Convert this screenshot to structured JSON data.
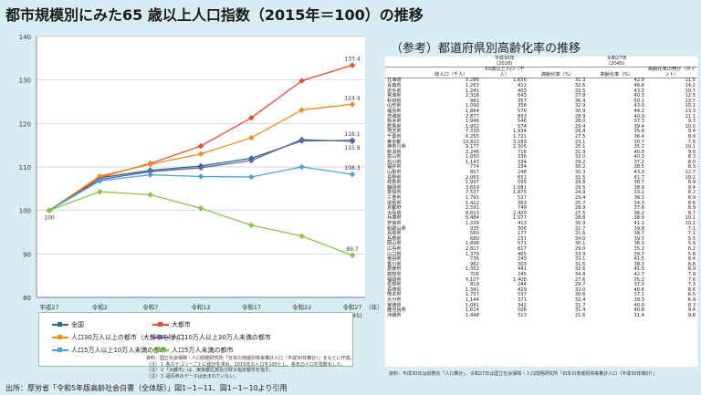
{
  "title": "都市規模別にみた65 歳以上人口指数（2015年＝100）の推移",
  "source": "出所：厚労省「令和5年版高齢社会白書（全体版）」図1−1−11、図1−1−10より引用",
  "notes": [
    "資料：国立社会保障・人口問題研究所「日本の地域別将来推計人口（平成30年推計）」をもとに作成。",
    "（注）１ 各カテゴリーごとに総計を求め、2015年の人口を100とし、各年の人口を指数化した。",
    "（注）２「大都市」は、東京都区部及び政令指定都市を指す。",
    "（注）３ 福島県のデータは含まれていない。"
  ],
  "chart_data": {
    "type": "line",
    "title": "都市規模別にみた65 歳以上人口指数（2015年＝100）の推移",
    "xlabel": "（年）",
    "ylabel": "",
    "categories": [
      "平成27\n(2015)",
      "令和2\n(2020)",
      "令和7\n(2025)",
      "令和12\n(2030)",
      "令和17\n(2035)",
      "令和22\n(2040)",
      "令和27\n(2045)"
    ],
    "ylim": [
      80,
      140
    ],
    "yticks": [
      80,
      90,
      100,
      110,
      120,
      130,
      140
    ],
    "grid": true,
    "legend_position": "bottom",
    "series": [
      {
        "name": "全国",
        "color": "#1f6f7f",
        "values": [
          100,
          107.5,
          109.2,
          110.2,
          112.0,
          116.0,
          116.1
        ],
        "end_label": "116.1"
      },
      {
        "name": "大都市",
        "color": "#ee4c2c",
        "values": [
          100,
          107.6,
          110.8,
          114.8,
          121.3,
          129.8,
          133.4
        ],
        "end_label": "133.4"
      },
      {
        "name": "人口30万人以上の都市（大都市を除く）",
        "color": "#f08c1e",
        "values": [
          100,
          107.9,
          110.6,
          113.0,
          116.7,
          123.1,
          124.4
        ],
        "end_label": "124.4"
      },
      {
        "name": "人口10万人以上30万人未満の都市",
        "color": "#6a5fa8",
        "values": [
          100,
          107.1,
          108.9,
          109.8,
          111.5,
          116.3,
          115.9
        ],
        "end_label": "115.9"
      },
      {
        "name": "人口5万人以上10万人未満の都市",
        "color": "#4aa3d8",
        "values": [
          100,
          106.8,
          108.2,
          107.8,
          107.7,
          110.0,
          108.3
        ],
        "end_label": "108.3"
      },
      {
        "name": "人口5万人未満の都市",
        "color": "#8bc34a",
        "values": [
          100,
          104.3,
          103.6,
          100.5,
          96.6,
          94.1,
          89.7
        ],
        "end_label": "89.7"
      }
    ],
    "start_label": "100"
  },
  "reference": {
    "title": "（参考）都道府県別高齢化率の推移",
    "group_headers": [
      "平成30年\n(2018)",
      "令和27年\n(2045)"
    ],
    "columns": [
      "総人口（千人）",
      "65歳以上人口（千人）",
      "高齢化率（%）",
      "高齢化率（%）",
      "高齢化率の伸び（ポイント）"
    ],
    "rows": [
      [
        "北海道",
        "5,286",
        "1,656",
        "31.3",
        "42.8",
        "11.5"
      ],
      [
        "青森県",
        "1,263",
        "412",
        "32.6",
        "46.8",
        "14.2"
      ],
      [
        "岩手県",
        "1,241",
        "403",
        "32.5",
        "43.2",
        "10.7"
      ],
      [
        "宮城県",
        "2,316",
        "643",
        "27.8",
        "40.3",
        "12.5"
      ],
      [
        "秋田県",
        "981",
        "357",
        "36.4",
        "50.1",
        "13.7"
      ],
      [
        "山形県",
        "1,090",
        "358",
        "32.9",
        "43.0",
        "10.1"
      ],
      [
        "福島県",
        "1,864",
        "576",
        "30.9",
        "44.2",
        "13.3"
      ],
      [
        "茨城県",
        "2,877",
        "833",
        "28.9",
        "40.0",
        "11.1"
      ],
      [
        "栃木県",
        "1,946",
        "546",
        "28.0",
        "37.3",
        "9.3"
      ],
      [
        "群馬県",
        "1,952",
        "574",
        "29.4",
        "39.4",
        "10.0"
      ],
      [
        "埼玉県",
        "7,330",
        "1,934",
        "26.4",
        "35.8",
        "9.4"
      ],
      [
        "千葉県",
        "6,255",
        "1,721",
        "27.5",
        "36.4",
        "8.9"
      ],
      [
        "東京都",
        "13,822",
        "3,189",
        "23.1",
        "30.7",
        "7.6"
      ],
      [
        "神奈川県",
        "9,177",
        "2,305",
        "25.1",
        "35.2",
        "10.1"
      ],
      [
        "新潟県",
        "2,246",
        "716",
        "31.9",
        "40.9",
        "9.0"
      ],
      [
        "富山県",
        "1,050",
        "336",
        "32.0",
        "40.3",
        "8.3"
      ],
      [
        "石川県",
        "1,143",
        "334",
        "29.2",
        "37.2",
        "8.0"
      ],
      [
        "福井県",
        "774",
        "234",
        "30.2",
        "38.5",
        "8.3"
      ],
      [
        "山梨県",
        "817",
        "248",
        "30.3",
        "43.0",
        "12.7"
      ],
      [
        "長野県",
        "2,063",
        "651",
        "31.5",
        "41.7",
        "10.2"
      ],
      [
        "岐阜県",
        "1,997",
        "595",
        "29.8",
        "38.7",
        "8.9"
      ],
      [
        "静岡県",
        "3,659",
        "1,081",
        "29.5",
        "38.9",
        "9.4"
      ],
      [
        "愛知県",
        "7,537",
        "1,875",
        "24.9",
        "33.1",
        "8.2"
      ],
      [
        "三重県",
        "1,791",
        "527",
        "29.4",
        "38.3",
        "8.9"
      ],
      [
        "滋賀県",
        "1,412",
        "363",
        "25.7",
        "34.3",
        "8.6"
      ],
      [
        "京都府",
        "2,591",
        "749",
        "28.9",
        "37.8",
        "8.9"
      ],
      [
        "大阪府",
        "8,813",
        "2,420",
        "27.5",
        "36.2",
        "8.7"
      ],
      [
        "兵庫県",
        "5,484",
        "1,577",
        "28.8",
        "38.9",
        "10.1"
      ],
      [
        "奈良県",
        "1,339",
        "413",
        "30.9",
        "41.1",
        "10.2"
      ],
      [
        "和歌山県",
        "935",
        "306",
        "32.7",
        "39.8",
        "7.1"
      ],
      [
        "鳥取県",
        "560",
        "177",
        "31.6",
        "38.7",
        "7.1"
      ],
      [
        "島根県",
        "680",
        "231",
        "34.0",
        "39.5",
        "5.5"
      ],
      [
        "岡山県",
        "1,898",
        "571",
        "30.1",
        "36.0",
        "5.9"
      ],
      [
        "広島県",
        "2,817",
        "817",
        "29.0",
        "35.2",
        "6.2"
      ],
      [
        "山口県",
        "1,370",
        "465",
        "33.9",
        "39.7",
        "5.8"
      ],
      [
        "徳島県",
        "736",
        "243",
        "33.1",
        "41.5",
        "8.4"
      ],
      [
        "香川県",
        "962",
        "303",
        "31.5",
        "38.3",
        "6.8"
      ],
      [
        "愛媛県",
        "1,352",
        "441",
        "32.6",
        "41.5",
        "8.9"
      ],
      [
        "高知県",
        "706",
        "245",
        "34.8",
        "42.7",
        "7.9"
      ],
      [
        "福岡県",
        "5,107",
        "1,408",
        "27.6",
        "35.2",
        "7.6"
      ],
      [
        "佐賀県",
        "819",
        "244",
        "29.7",
        "37.0",
        "7.3"
      ],
      [
        "長崎県",
        "1,341",
        "429",
        "32.0",
        "40.6",
        "8.6"
      ],
      [
        "熊本県",
        "1,757",
        "537",
        "30.6",
        "37.1",
        "6.5"
      ],
      [
        "大分県",
        "1,144",
        "371",
        "32.4",
        "39.3",
        "6.9"
      ],
      [
        "宮崎県",
        "1,081",
        "342",
        "31.7",
        "40.0",
        "8.3"
      ],
      [
        "鹿児島県",
        "1,614",
        "506",
        "31.4",
        "40.8",
        "9.4"
      ],
      [
        "沖縄県",
        "1,448",
        "313",
        "21.6",
        "31.4",
        "9.8"
      ]
    ],
    "note": "資料：平成30年は総務省「人口推計」、令和27年は国立社会保障・人口問題研究所「日本の地域別将来推計人口（平成30年推計）」"
  }
}
